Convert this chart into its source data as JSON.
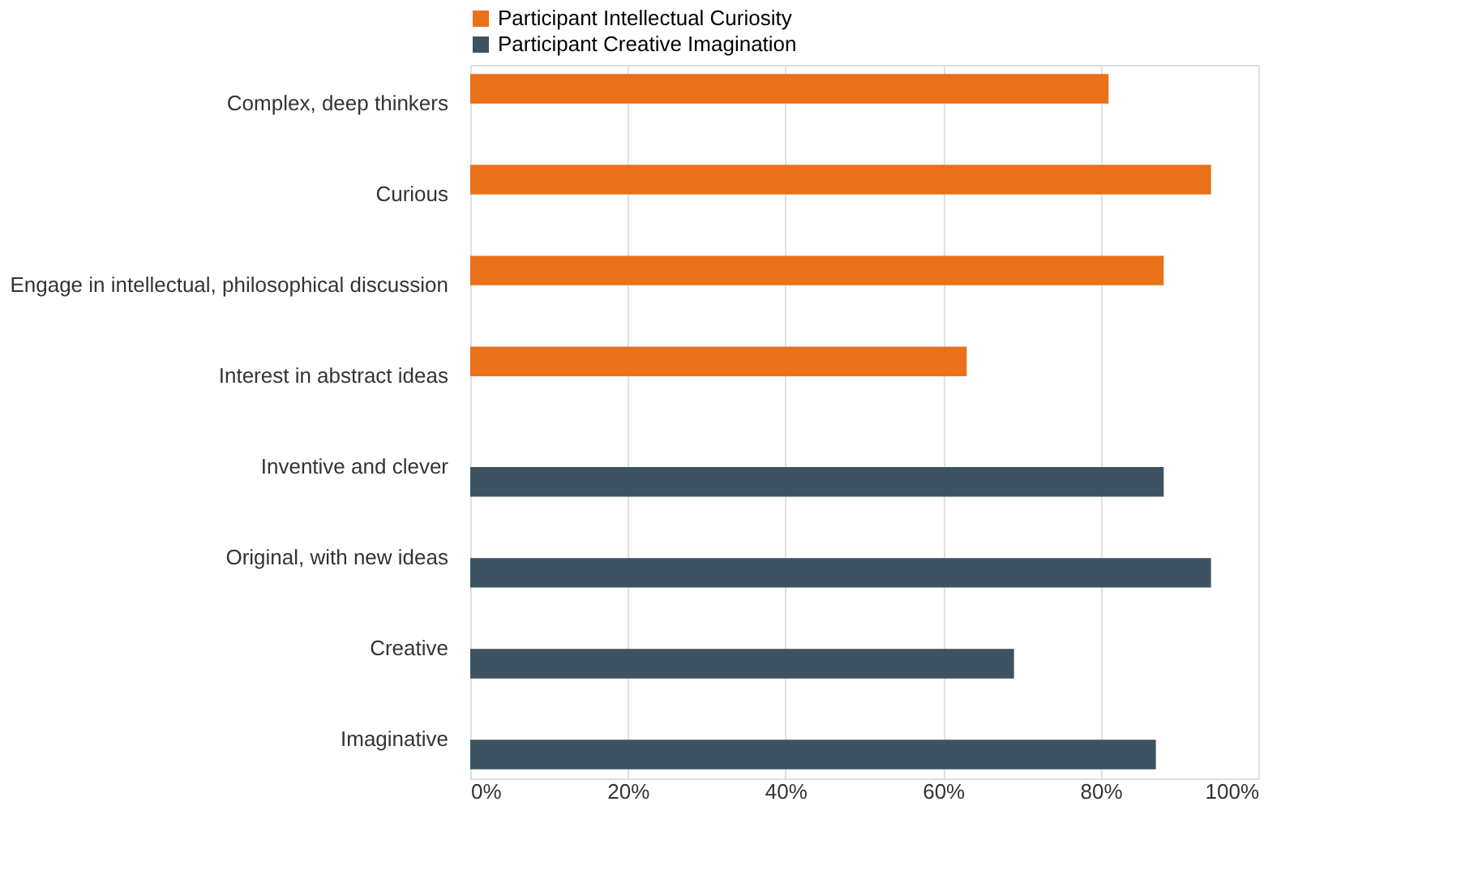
{
  "chart_data": {
    "type": "bar",
    "orientation": "horizontal",
    "categories": [
      "Complex, deep thinkers",
      "Curious",
      "Engage in intellectual, philosophical discussion",
      "Interest in abstract ideas",
      "Inventive and clever",
      "Original, with new ideas",
      "Creative",
      "Imaginative"
    ],
    "series": [
      {
        "name": "Participant Intellectual Curiosity",
        "color": "#e8711a",
        "values": [
          81,
          94,
          88,
          63,
          null,
          null,
          null,
          null
        ]
      },
      {
        "name": "Participant Creative Imagination",
        "color": "#3d5361",
        "values": [
          null,
          null,
          null,
          null,
          88,
          94,
          69,
          87
        ]
      }
    ],
    "xlim": [
      0,
      100
    ],
    "xticks": [
      {
        "value": 0,
        "label": "0%"
      },
      {
        "value": 20,
        "label": "20%"
      },
      {
        "value": 40,
        "label": "40%"
      },
      {
        "value": 60,
        "label": "60%"
      },
      {
        "value": 80,
        "label": "80%"
      },
      {
        "value": 100,
        "label": "100%"
      }
    ],
    "grid": "x",
    "legend": "top"
  }
}
